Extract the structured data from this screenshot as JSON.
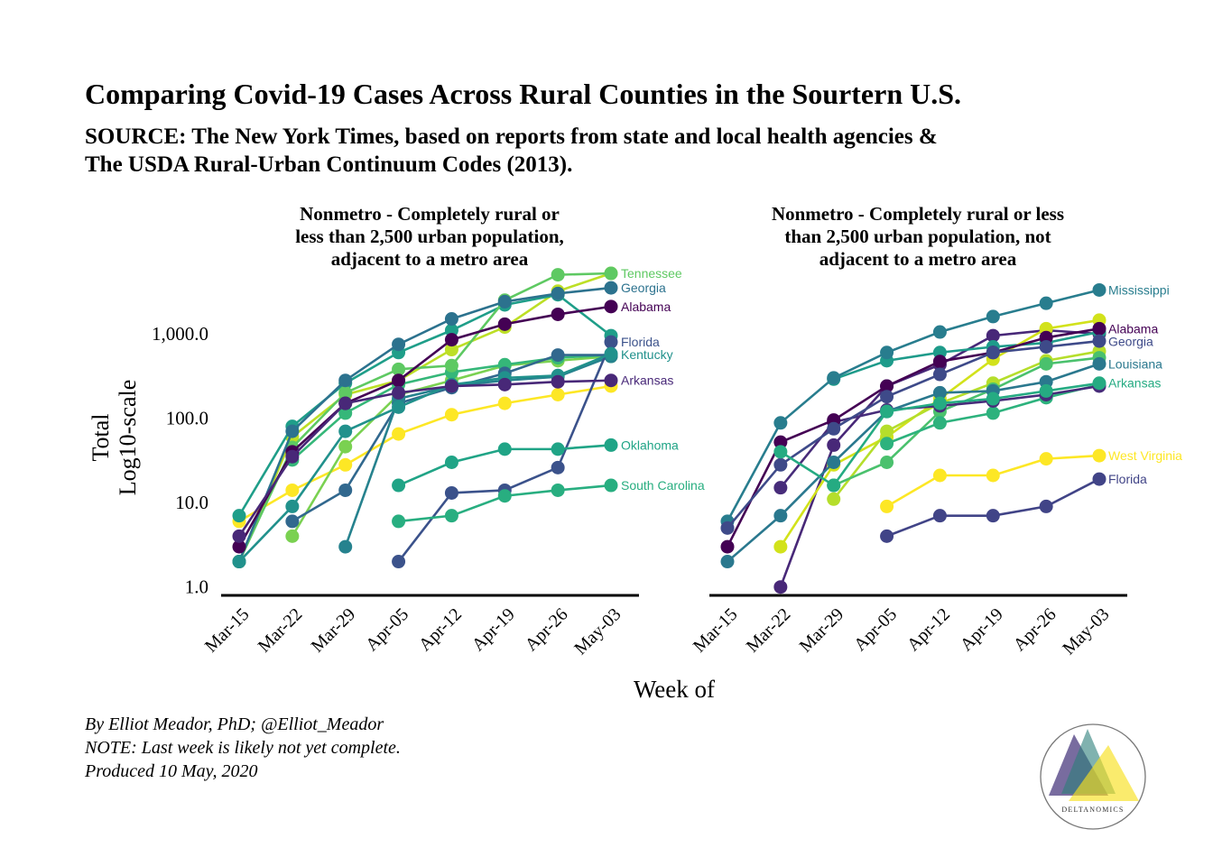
{
  "title": "Comparing Covid-19 Cases Across Rural Counties in the Sourtern U.S.",
  "subtitle_lines": [
    "SOURCE: The New York Times, based on reports from state and local health agencies &",
    "The USDA Rural-Urban Continuum Codes (2013)."
  ],
  "caption_lines": [
    "By Elliot Meador, PhD; @Elliot_Meador",
    "NOTE: Last week is likely not yet complete.",
    "Produced 10 May, 2020"
  ],
  "logo_text": "DELTANOMICS",
  "chart_data": {
    "type": "line",
    "scale": "log10",
    "xlabel": "Week of",
    "ylabel_lines": [
      "Total",
      "Log10-scale"
    ],
    "x": [
      "Mar-15",
      "Mar-22",
      "Mar-29",
      "Apr-05",
      "Apr-12",
      "Apr-19",
      "Apr-26",
      "May-03"
    ],
    "y_ticks": [
      1,
      10,
      100,
      1000
    ],
    "y_tick_labels": [
      "1.0",
      "10.0",
      "100.0",
      "1,000.0"
    ],
    "ylim": [
      0.9,
      5600
    ],
    "grid": false,
    "panels": [
      {
        "title_lines": [
          "Nonmetro - Completely rural or",
          "less than 2,500 urban population,",
          "adjacent to a metro area"
        ],
        "series": [
          {
            "name": "Tennessee",
            "color": "#5ec962",
            "values": [
              2,
              45,
              200,
              380,
              420,
              2500,
              5000,
              5200
            ]
          },
          {
            "name": "Georgia",
            "color": "#2c728e",
            "values": [
              2,
              70,
              280,
              750,
              1500,
              2400,
              3000,
              3500
            ]
          },
          {
            "name": "Alabama",
            "color": "#440154",
            "values": [
              3,
              40,
              150,
              280,
              850,
              1300,
              1700,
              2100
            ]
          },
          {
            "name": "Florida",
            "color": "#3b528b",
            "values": [
              null,
              null,
              null,
              2,
              13,
              14,
              26,
              800
            ]
          },
          {
            "name": "Kentucky",
            "color": "#21918c",
            "values": [
              2,
              9,
              70,
              135,
              250,
              300,
              320,
              580
            ]
          },
          {
            "name": "Arkansas",
            "color": "#482878",
            "values": [
              4,
              35,
              150,
              200,
              240,
              250,
              270,
              280
            ]
          },
          {
            "name": "South Carolina",
            "color": "#28ae80",
            "values": [
              null,
              null,
              null,
              6,
              7,
              12,
              14,
              16
            ]
          },
          {
            "name": "Oklahoma",
            "color": "#20a486",
            "values": [
              null,
              null,
              null,
              16,
              30,
              43,
              43,
              48
            ]
          },
          {
            "name": "",
            "color": "#fde725",
            "values": [
              6,
              14,
              28,
              65,
              110,
              150,
              190,
              240
            ]
          },
          {
            "name": "",
            "color": "#bddf26",
            "values": [
              2,
              60,
              190,
              280,
              650,
              1200,
              3200,
              5200
            ]
          },
          {
            "name": "",
            "color": "#1f9e89",
            "values": [
              7,
              80,
              260,
              600,
              1100,
              2200,
              2900,
              950
            ]
          },
          {
            "name": "",
            "color": "#7ad151",
            "values": [
              null,
              4,
              46,
              190,
              280,
              420,
              480,
              540
            ]
          },
          {
            "name": "",
            "color": "#35b779",
            "values": [
              null,
              32,
              115,
              250,
              350,
              430,
              520,
              560
            ]
          },
          {
            "name": "",
            "color": "#31688e",
            "values": [
              null,
              6,
              14,
              150,
              230,
              340,
              560,
              560
            ]
          },
          {
            "name": "",
            "color": "#26828e",
            "values": [
              null,
              null,
              3,
              170,
              240,
              280,
              310,
              540
            ]
          }
        ]
      },
      {
        "title_lines": [
          "Nonmetro - Completely rural or less",
          "than 2,500 urban population, not",
          "adjacent to a metro area"
        ],
        "series": [
          {
            "name": "Mississippi",
            "color": "#287d8e",
            "values": [
              6,
              88,
              300,
              600,
              1050,
              1600,
              2300,
              3300
            ]
          },
          {
            "name": "Alabama",
            "color": "#440154",
            "values": [
              3,
              52,
              95,
              240,
              470,
              600,
              900,
              1150
            ]
          },
          {
            "name": "Georgia",
            "color": "#3e4a89",
            "values": [
              5,
              28,
              75,
              180,
              330,
              600,
              700,
              820
            ]
          },
          {
            "name": "Louisiana",
            "color": "#2a788e",
            "values": [
              2,
              7,
              30,
              120,
              200,
              210,
              270,
              440
            ]
          },
          {
            "name": "Arkansas",
            "color": "#25ab82",
            "values": [
              null,
              40,
              16,
              120,
              150,
              170,
              210,
              260
            ]
          },
          {
            "name": "West Virginia",
            "color": "#fde725",
            "values": [
              null,
              null,
              null,
              9,
              21,
              21,
              33,
              36
            ]
          },
          {
            "name": "Florida",
            "color": "#414487",
            "values": [
              null,
              null,
              null,
              4,
              7,
              7,
              9,
              19
            ]
          },
          {
            "name": "",
            "color": "#482878",
            "values": [
              null,
              1,
              48,
              240,
              430,
              950,
              1100,
              1000
            ]
          },
          {
            "name": "",
            "color": "#1e9b8a",
            "values": [
              null,
              null,
              290,
              480,
              600,
              700,
              780,
              1050
            ]
          },
          {
            "name": "",
            "color": "#d2e21b",
            "values": [
              null,
              3,
              28,
              60,
              170,
              500,
              1150,
              1450
            ]
          },
          {
            "name": "",
            "color": "#b5de2b",
            "values": [
              null,
              null,
              11,
              70,
              150,
              260,
              480,
              620
            ]
          },
          {
            "name": "",
            "color": "#4ac16d",
            "values": [
              null,
              null,
              16,
              30,
              120,
              220,
              440,
              520
            ]
          },
          {
            "name": "",
            "color": "#2db27d",
            "values": [
              null,
              null,
              null,
              50,
              88,
              115,
              175,
              250
            ]
          },
          {
            "name": "",
            "color": "#472c7a",
            "values": [
              null,
              15,
              90,
              125,
              140,
              160,
              190,
              240
            ]
          }
        ]
      }
    ]
  }
}
